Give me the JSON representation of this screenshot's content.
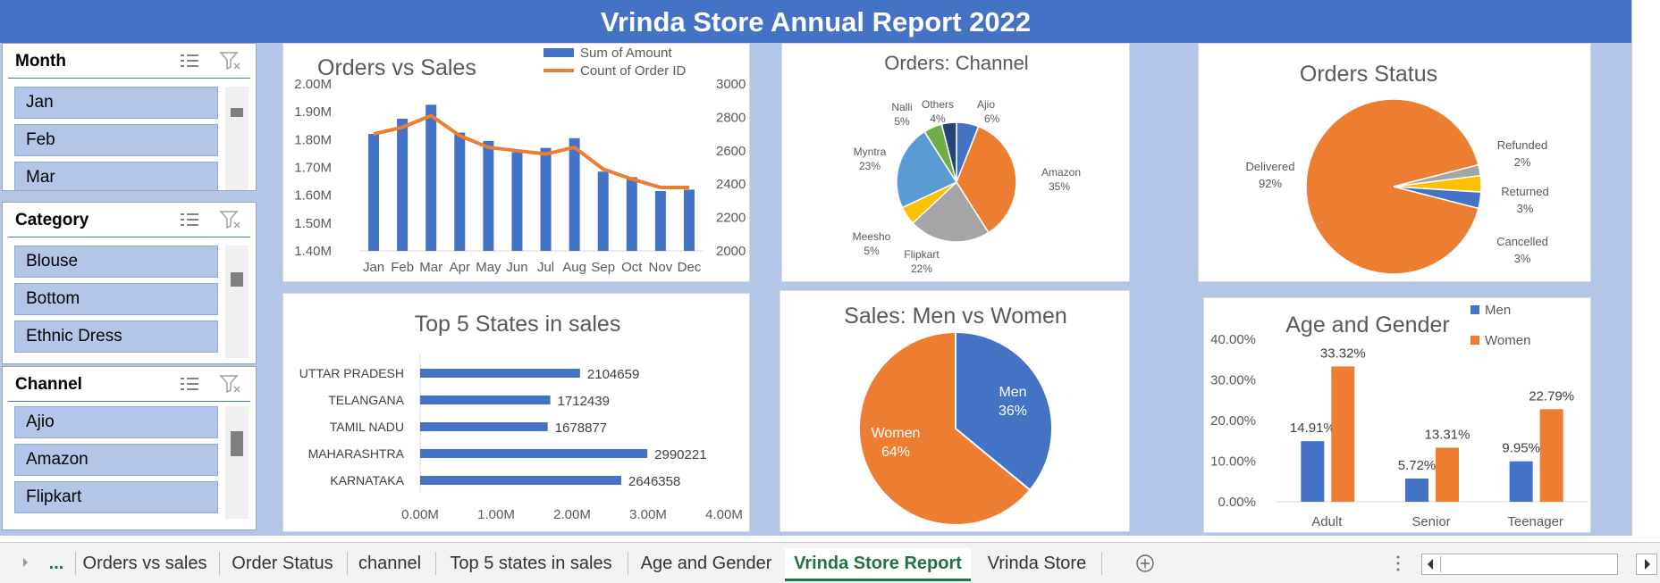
{
  "report": {
    "title": "Vrinda Store Annual Report 2022"
  },
  "slicers": {
    "month": {
      "title": "Month",
      "items": [
        "Jan",
        "Feb",
        "Mar"
      ]
    },
    "category": {
      "title": "Category",
      "items": [
        "Blouse",
        "Bottom",
        "Ethnic Dress"
      ]
    },
    "channel": {
      "title": "Channel",
      "items": [
        "Ajio",
        "Amazon",
        "Flipkart"
      ]
    }
  },
  "colors": {
    "blue": "#4472c4",
    "orange": "#ed7d31",
    "gray": "#a5a5a5",
    "yellow": "#ffc000",
    "lightblue": "#5b9bd5",
    "green": "#70ad47",
    "navy": "#264478"
  },
  "chart_data": [
    {
      "id": "orders-vs-sales",
      "type": "bar",
      "title": "Orders vs Sales",
      "categories": [
        "Jan",
        "Feb",
        "Mar",
        "Apr",
        "May",
        "Jun",
        "Jul",
        "Aug",
        "Sep",
        "Oct",
        "Nov",
        "Dec"
      ],
      "series": [
        {
          "name": "Sum of Amount",
          "type": "bar",
          "axis": "left",
          "values": [
            1820000,
            1875000,
            1925000,
            1825000,
            1795000,
            1755000,
            1770000,
            1805000,
            1685000,
            1665000,
            1615000,
            1620000
          ]
        },
        {
          "name": "Count of Order ID",
          "type": "line",
          "axis": "right",
          "values": [
            2700,
            2740,
            2810,
            2690,
            2620,
            2600,
            2580,
            2620,
            2490,
            2430,
            2380,
            2380
          ]
        }
      ],
      "ylim": [
        1400000,
        2000000
      ],
      "y_ticks": [
        "2.00M",
        "1.90M",
        "1.80M",
        "1.70M",
        "1.60M",
        "1.50M",
        "1.40M"
      ],
      "y2lim": [
        2000,
        3000
      ],
      "y2_ticks": [
        "3000",
        "2800",
        "2600",
        "2400",
        "2200",
        "2000"
      ],
      "legend": "top-right"
    },
    {
      "id": "orders-channel",
      "type": "pie",
      "title": "Orders: Channel",
      "slices": [
        {
          "label": "Ajio",
          "pct": "6%",
          "value": 6
        },
        {
          "label": "Amazon",
          "pct": "35%",
          "value": 35
        },
        {
          "label": "Flipkart",
          "pct": "22%",
          "value": 22
        },
        {
          "label": "Meesho",
          "pct": "5%",
          "value": 5
        },
        {
          "label": "Myntra",
          "pct": "23%",
          "value": 23
        },
        {
          "label": "Nalli",
          "pct": "5%",
          "value": 5
        },
        {
          "label": "Others",
          "pct": "4%",
          "value": 4
        }
      ]
    },
    {
      "id": "orders-status",
      "type": "pie",
      "title": "Orders Status",
      "slices": [
        {
          "label": "Delivered",
          "pct": "92%",
          "value": 92
        },
        {
          "label": "Refunded",
          "pct": "2%",
          "value": 2
        },
        {
          "label": "Returned",
          "pct": "3%",
          "value": 3
        },
        {
          "label": "Cancelled",
          "pct": "3%",
          "value": 3
        }
      ]
    },
    {
      "id": "top-states",
      "type": "bar",
      "orientation": "horizontal",
      "title": "Top 5 States in sales",
      "categories": [
        "UTTAR PRADESH",
        "TELANGANA",
        "TAMIL NADU",
        "MAHARASHTRA",
        "KARNATAKA"
      ],
      "values": [
        2104659,
        1712439,
        1678877,
        2990221,
        2646358
      ],
      "labels": [
        "2104659",
        "1712439",
        "1678877",
        "2990221",
        "2646358"
      ],
      "xlim": [
        0,
        4000000
      ],
      "x_ticks": [
        "0.00M",
        "1.00M",
        "2.00M",
        "3.00M",
        "4.00M"
      ]
    },
    {
      "id": "men-vs-women",
      "type": "pie",
      "title": "Sales: Men vs Women",
      "slices": [
        {
          "label": "Men",
          "pct": "36%",
          "value": 36
        },
        {
          "label": "Women",
          "pct": "64%",
          "value": 64
        }
      ]
    },
    {
      "id": "age-gender",
      "type": "bar",
      "title": "Age and Gender",
      "categories": [
        "Adult",
        "Senior",
        "Teenager"
      ],
      "series": [
        {
          "name": "Men",
          "values": [
            14.91,
            5.72,
            9.95
          ],
          "labels": [
            "14.91%",
            "5.72%",
            "9.95%"
          ]
        },
        {
          "name": "Women",
          "values": [
            33.32,
            13.31,
            22.79
          ],
          "labels": [
            "33.32%",
            "13.31%",
            "22.79%"
          ]
        }
      ],
      "ylim": [
        0,
        40
      ],
      "y_ticks": [
        "40.00%",
        "30.00%",
        "20.00%",
        "10.00%",
        "0.00%"
      ],
      "legend": "top-right"
    }
  ],
  "tabs": {
    "more": "...",
    "items": [
      "Orders vs sales",
      "Order Status",
      "channel",
      "Top 5 states in sales",
      "Age and Gender",
      "Vrinda Store Report",
      "Vrinda Store"
    ],
    "active": "Vrinda Store Report"
  }
}
